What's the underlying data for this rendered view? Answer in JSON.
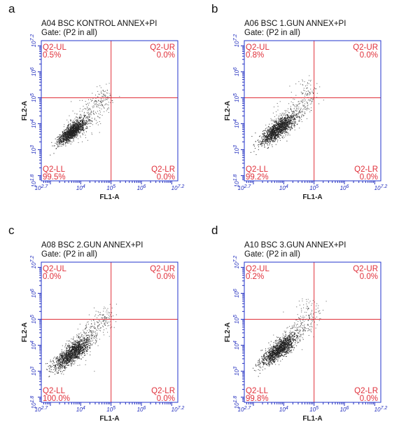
{
  "figure": {
    "panels": [
      {
        "letter": "a",
        "title": "A04 BSC KONTROL ANNEX+PI",
        "gate": "Gate: (P2 in all)",
        "quadrants": {
          "UL": {
            "label": "Q2-UL",
            "value": "0.5%"
          },
          "UR": {
            "label": "Q2-UR",
            "value": "0.0%"
          },
          "LL": {
            "label": "Q2-LL",
            "value": "99.5%"
          },
          "LR": {
            "label": "Q2-LR",
            "value": "0.0%"
          }
        }
      },
      {
        "letter": "b",
        "title": "A06 BSC 1.GUN ANNEX+PI",
        "gate": "Gate: (P2 in all)",
        "quadrants": {
          "UL": {
            "label": "Q2-UL",
            "value": "0.8%"
          },
          "UR": {
            "label": "Q2-UR",
            "value": "0.0%"
          },
          "LL": {
            "label": "Q2-LL",
            "value": "99.2%"
          },
          "LR": {
            "label": "Q2-LR",
            "value": "0.0%"
          }
        }
      },
      {
        "letter": "c",
        "title": "A08 BSC 2.GUN ANNEX+PI",
        "gate": "Gate: (P2 in all)",
        "quadrants": {
          "UL": {
            "label": "Q2-UL",
            "value": "0.0%"
          },
          "UR": {
            "label": "Q2-UR",
            "value": "0.0%"
          },
          "LL": {
            "label": "Q2-LL",
            "value": "100.0%"
          },
          "LR": {
            "label": "Q2-LR",
            "value": "0.0%"
          }
        }
      },
      {
        "letter": "d",
        "title": "A10 BSC 3.GUN ANNEX+PI",
        "gate": "Gate: (P2 in all)",
        "quadrants": {
          "UL": {
            "label": "Q2-UL",
            "value": "0.2%"
          },
          "UR": {
            "label": "Q2-UR",
            "value": "0.0%"
          },
          "LL": {
            "label": "Q2-LL",
            "value": "99.8%"
          },
          "LR": {
            "label": "Q2-LR",
            "value": "0.0%"
          }
        }
      }
    ],
    "colors": {
      "frame": "#2233cc",
      "gate_lines": "#e0303a",
      "quadrant_text": "#e0303a",
      "ticks": "#1f2bbd",
      "events": "#222222"
    }
  },
  "chart_data": [
    {
      "type": "scatter",
      "title": "A04 BSC KONTROL ANNEX+PI",
      "subtitle": "Gate: (P2 in all)",
      "xlabel": "FL1-A",
      "ylabel": "FL2-A",
      "x_scale": "log",
      "y_scale": "log",
      "xlim": [
        2.7,
        7.2
      ],
      "ylim": [
        1.8,
        7.2
      ],
      "x_tick_labels": [
        "2.7",
        "4",
        "5",
        "6",
        "7.2"
      ],
      "y_tick_labels": [
        "1.8",
        "3",
        "4",
        "5",
        "6",
        "7.2"
      ],
      "gate": {
        "x": 5.0,
        "y": 5.0
      },
      "quadrants": {
        "Q2-UL": 0.5,
        "Q2-UR": 0.0,
        "Q2-LL": 99.5,
        "Q2-LR": 0.0
      },
      "population": {
        "center": [
          3.7,
          3.7
        ],
        "spread": 0.22,
        "tail_y": 0.5
      }
    },
    {
      "type": "scatter",
      "title": "A06 BSC 1.GUN ANNEX+PI",
      "subtitle": "Gate: (P2 in all)",
      "xlabel": "FL1-A",
      "ylabel": "FL2-A",
      "x_scale": "log",
      "y_scale": "log",
      "xlim": [
        2.7,
        7.2
      ],
      "ylim": [
        1.8,
        7.2
      ],
      "x_tick_labels": [
        "2.7",
        "4",
        "5",
        "6",
        "7.2"
      ],
      "y_tick_labels": [
        "1.8",
        "3",
        "4",
        "5",
        "6",
        "7.2"
      ],
      "gate": {
        "x": 5.0,
        "y": 5.0
      },
      "quadrants": {
        "Q2-UL": 0.8,
        "Q2-UR": 0.0,
        "Q2-LL": 99.2,
        "Q2-LR": 0.0
      },
      "population": {
        "center": [
          3.8,
          3.8
        ],
        "spread": 0.28,
        "tail_y": 0.8
      }
    },
    {
      "type": "scatter",
      "title": "A08 BSC 2.GUN ANNEX+PI",
      "subtitle": "Gate: (P2 in all)",
      "xlabel": "FL1-A",
      "ylabel": "FL2-A",
      "x_scale": "log",
      "y_scale": "log",
      "xlim": [
        2.7,
        7.2
      ],
      "ylim": [
        1.8,
        7.2
      ],
      "x_tick_labels": [
        "2.7",
        "4",
        "5",
        "6",
        "7.2"
      ],
      "y_tick_labels": [
        "1.8",
        "3",
        "4",
        "5",
        "6",
        "7.2"
      ],
      "gate": {
        "x": 5.0,
        "y": 5.0
      },
      "quadrants": {
        "Q2-UL": 0.0,
        "Q2-UR": 0.0,
        "Q2-LL": 100.0,
        "Q2-LR": 0.0
      },
      "population": {
        "center": [
          3.7,
          3.7
        ],
        "spread": 0.3,
        "tail_y": 0.6
      }
    },
    {
      "type": "scatter",
      "title": "A10 BSC 3.GUN ANNEX+PI",
      "subtitle": "Gate: (P2 in all)",
      "xlabel": "FL1-A",
      "ylabel": "FL2-A",
      "x_scale": "log",
      "y_scale": "log",
      "xlim": [
        2.7,
        7.2
      ],
      "ylim": [
        1.8,
        7.2
      ],
      "x_tick_labels": [
        "2.7",
        "4",
        "5",
        "6",
        "7.2"
      ],
      "y_tick_labels": [
        "1.8",
        "3",
        "4",
        "5",
        "6",
        "7.2"
      ],
      "gate": {
        "x": 5.0,
        "y": 5.0
      },
      "quadrants": {
        "Q2-UL": 0.2,
        "Q2-UR": 0.0,
        "Q2-LL": 99.8,
        "Q2-LR": 0.0
      },
      "population": {
        "center": [
          3.85,
          3.85
        ],
        "spread": 0.28,
        "tail_y": 1.0
      }
    }
  ]
}
